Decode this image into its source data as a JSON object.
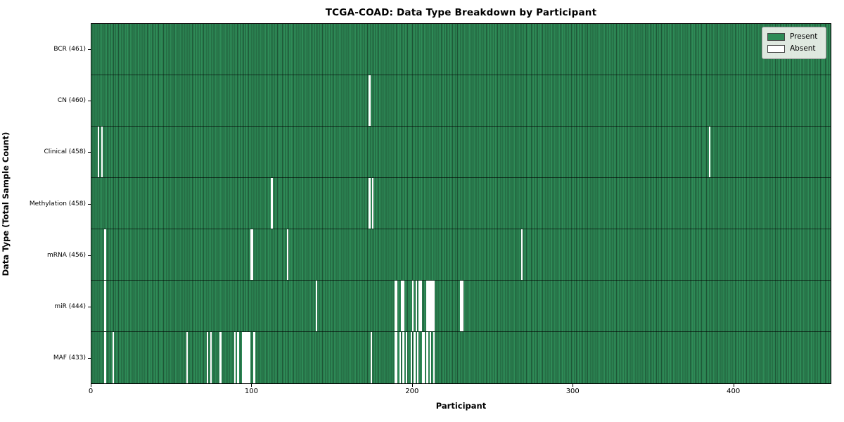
{
  "title": "TCGA-COAD: Data Type Breakdown by Participant",
  "axes": {
    "xlabel": "Participant",
    "ylabel": "Data Type (Total Sample Count)"
  },
  "legend": {
    "present_label": "Present",
    "absent_label": "Absent"
  },
  "colors": {
    "present": "#2e8b57",
    "present_edge": "#1d5636",
    "absent": "#ffffff",
    "legend_bg": "#e9eee8",
    "plot_border": "#000000"
  },
  "chart_data": {
    "type": "heatmap",
    "title": "TCGA-COAD: Data Type Breakdown by Participant",
    "xlabel": "Participant",
    "ylabel": "Data Type (Total Sample Count)",
    "x_range": [
      0,
      461
    ],
    "x_ticks": [
      0,
      100,
      200,
      300,
      400
    ],
    "x_tick_labels": [
      "0",
      "100",
      "200",
      "300",
      "400"
    ],
    "total_participants": 461,
    "legend_entries": [
      "Present",
      "Absent"
    ],
    "grid": false,
    "legend_position": "upper right",
    "rows": [
      {
        "label": "BCR (461)",
        "data_type": "BCR",
        "present_count": 461,
        "absent_participants": []
      },
      {
        "label": "CN (460)",
        "data_type": "CN",
        "present_count": 460,
        "absent_participants": [
          173
        ]
      },
      {
        "label": "Clinical (458)",
        "data_type": "Clinical",
        "present_count": 458,
        "absent_participants": [
          4,
          6,
          385
        ]
      },
      {
        "label": "Methylation (458)",
        "data_type": "Methylation",
        "present_count": 458,
        "absent_participants": [
          112,
          173,
          175
        ]
      },
      {
        "label": "mRNA (456)",
        "data_type": "mRNA",
        "present_count": 456,
        "absent_participants": [
          8,
          99,
          100,
          122,
          268
        ]
      },
      {
        "label": "miR (444)",
        "data_type": "miR",
        "present_count": 444,
        "absent_participants": [
          8,
          140,
          189,
          190,
          193,
          194,
          200,
          202,
          204,
          205,
          209,
          210,
          211,
          212,
          213,
          230,
          231
        ]
      },
      {
        "label": "MAF (433)",
        "data_type": "MAF",
        "present_count": 433,
        "absent_participants": [
          8,
          13,
          59,
          72,
          74,
          80,
          89,
          91,
          94,
          95,
          96,
          97,
          98,
          101,
          174,
          189,
          190,
          192,
          194,
          196,
          199,
          201,
          203,
          206,
          207,
          209,
          211,
          213
        ]
      }
    ]
  }
}
